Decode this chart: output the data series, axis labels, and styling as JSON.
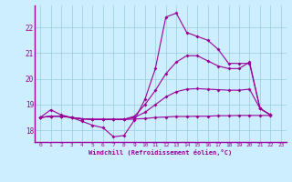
{
  "xlabel": "Windchill (Refroidissement éolien,°C)",
  "background_color": "#cceeff",
  "grid_color": "#99ccdd",
  "line_color": "#990099",
  "xlim": [
    -0.5,
    23.5
  ],
  "ylim": [
    17.55,
    22.85
  ],
  "yticks": [
    18,
    19,
    20,
    21,
    22
  ],
  "xticks": [
    0,
    1,
    2,
    3,
    4,
    5,
    6,
    7,
    8,
    9,
    10,
    11,
    12,
    13,
    14,
    15,
    16,
    17,
    18,
    19,
    20,
    21,
    22,
    23
  ],
  "series": [
    [
      18.5,
      18.8,
      18.6,
      18.5,
      18.35,
      18.2,
      18.1,
      17.75,
      17.8,
      18.4,
      19.2,
      20.4,
      22.4,
      22.55,
      21.8,
      21.65,
      21.5,
      21.15,
      20.6,
      20.6,
      20.6,
      18.85,
      18.6
    ],
    [
      18.5,
      18.55,
      18.55,
      18.5,
      18.45,
      18.42,
      18.42,
      18.42,
      18.42,
      18.44,
      18.46,
      18.5,
      18.52,
      18.54,
      18.54,
      18.55,
      18.55,
      18.57,
      18.57,
      18.58,
      18.58,
      18.58,
      18.58
    ],
    [
      18.5,
      18.55,
      18.55,
      18.5,
      18.45,
      18.43,
      18.43,
      18.43,
      18.43,
      18.5,
      18.7,
      19.0,
      19.3,
      19.5,
      19.6,
      19.62,
      19.6,
      19.58,
      19.56,
      19.56,
      19.6,
      18.85,
      18.6
    ],
    [
      18.5,
      18.55,
      18.55,
      18.5,
      18.45,
      18.43,
      18.43,
      18.43,
      18.43,
      18.55,
      19.0,
      19.55,
      20.2,
      20.65,
      20.9,
      20.9,
      20.7,
      20.5,
      20.4,
      20.4,
      20.65,
      18.85,
      18.6
    ]
  ]
}
